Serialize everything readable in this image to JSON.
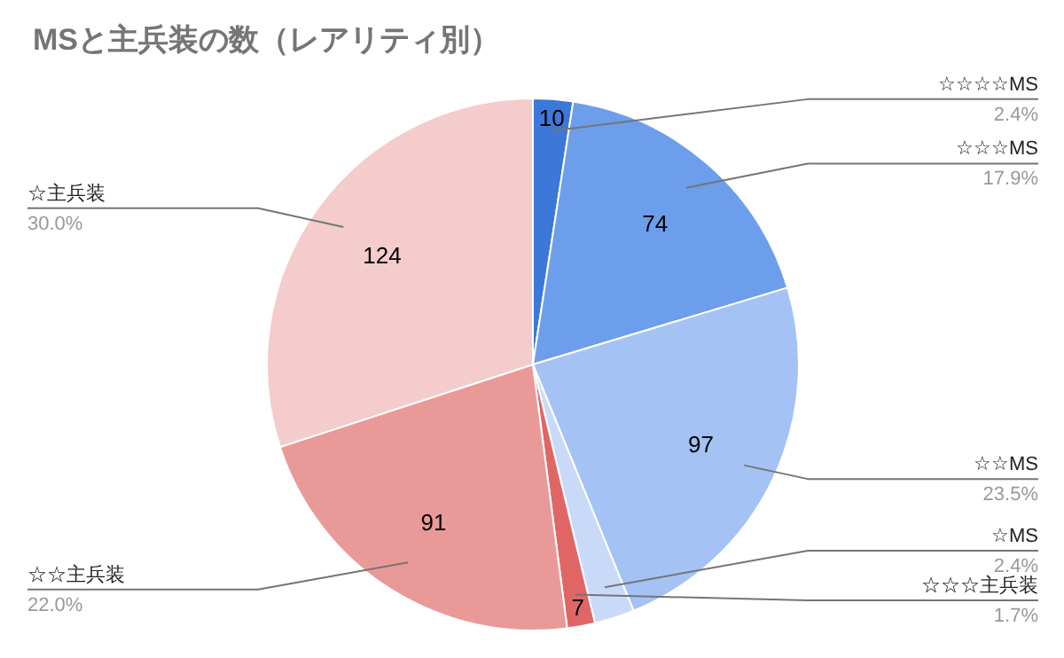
{
  "chart_data": {
    "type": "pie",
    "title": "MSと主兵装の数（レアリティ別）",
    "categories": [
      "☆☆☆☆MS",
      "☆☆☆MS",
      "☆☆MS",
      "☆MS",
      "☆☆☆主兵装",
      "☆☆主兵装",
      "☆主兵装"
    ],
    "values": [
      10,
      74,
      97,
      10,
      7,
      91,
      124
    ],
    "colors": [
      "#3c78d8",
      "#6d9eeb",
      "#a4c2f4",
      "#c9daf8",
      "#e06666",
      "#ea9999",
      "#f4cccc"
    ],
    "value_labels": [
      "10",
      "74",
      "97",
      null,
      "7",
      "91",
      "124"
    ],
    "annotations": [
      {
        "text": "2.4%",
        "x": "☆☆☆☆MS"
      },
      {
        "text": "17.9%",
        "x": "☆☆☆MS"
      },
      {
        "text": "23.5%",
        "x": "☆☆MS"
      },
      {
        "text": "2.4%",
        "x": "☆MS"
      },
      {
        "text": "1.7%",
        "x": "☆☆☆主兵装"
      },
      {
        "text": "22.0%",
        "x": "☆☆主兵装"
      },
      {
        "text": "30.0%",
        "x": "☆主兵装"
      }
    ]
  }
}
